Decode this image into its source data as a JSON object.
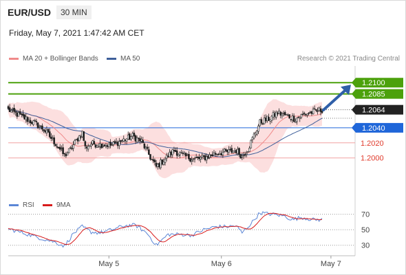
{
  "header": {
    "symbol": "EUR/USD",
    "timeframe": "30 MIN",
    "datetime": "Friday, May 7, 2021 1:47:42 AM CET",
    "copyright": "Research © 2021 Trading Central"
  },
  "legend": {
    "ma20_label": "MA 20 + Bollinger Bands",
    "ma50_label": "MA 50",
    "rsi_label": "RSI",
    "rsi_ma_label": "9MA"
  },
  "colors": {
    "ma20": "#f08a8a",
    "bollinger_fill": "#fbd4d4",
    "ma50": "#3e5f9a",
    "candle": "#222222",
    "target": "#4ca10c",
    "pivot": "#1f66d9",
    "support": "#e0392a",
    "support_line": "#f2a0a0",
    "last_price": "#222222",
    "arrow": "#2f5fa8",
    "rsi": "#5b86d6",
    "rsi_ma": "#d81b1b"
  },
  "chart_data": {
    "type": "candlestick",
    "symbol": "EUR/USD",
    "interval": "30 MIN",
    "price_axis": {
      "min": 1.1965,
      "max": 1.2113
    },
    "x_ticks": [
      "May 5",
      "May 6",
      "May 7"
    ],
    "last_price": 1.2064,
    "levels": [
      {
        "value": 1.21,
        "label": "1.2100",
        "kind": "target"
      },
      {
        "value": 1.2085,
        "label": "1.2085",
        "kind": "target"
      },
      {
        "value": 1.204,
        "label": "1.2040",
        "kind": "pivot"
      },
      {
        "value": 1.202,
        "label": "1.2020",
        "kind": "support"
      },
      {
        "value": 1.2,
        "label": "1.2000",
        "kind": "support"
      }
    ],
    "close_anchors": [
      [
        0,
        1.2064
      ],
      [
        6,
        1.2058
      ],
      [
        12,
        1.2052
      ],
      [
        18,
        1.2046
      ],
      [
        24,
        1.2038
      ],
      [
        30,
        1.2024
      ],
      [
        34,
        1.2014
      ],
      [
        38,
        1.2003
      ],
      [
        42,
        1.2011
      ],
      [
        46,
        1.2023
      ],
      [
        50,
        1.2034
      ],
      [
        52,
        1.2014
      ],
      [
        56,
        1.2019
      ],
      [
        62,
        1.2018
      ],
      [
        70,
        1.2017
      ],
      [
        78,
        1.2024
      ],
      [
        84,
        1.2029
      ],
      [
        90,
        1.2022
      ],
      [
        96,
        1.2001
      ],
      [
        100,
        1.1988
      ],
      [
        106,
        1.1999
      ],
      [
        112,
        1.201
      ],
      [
        118,
        1.2003
      ],
      [
        126,
        1.1998
      ],
      [
        134,
        1.2001
      ],
      [
        140,
        1.2006
      ],
      [
        148,
        1.2008
      ],
      [
        154,
        1.201
      ],
      [
        158,
        1.2002
      ],
      [
        162,
        1.2012
      ],
      [
        166,
        1.203
      ],
      [
        170,
        1.2047
      ],
      [
        176,
        1.2052
      ],
      [
        182,
        1.206
      ],
      [
        188,
        1.2056
      ],
      [
        194,
        1.2052
      ],
      [
        200,
        1.2058
      ],
      [
        206,
        1.2061
      ],
      [
        212,
        1.2064
      ]
    ],
    "rsi_axis": {
      "min": 20,
      "max": 75,
      "ticks": [
        70,
        50,
        30
      ]
    },
    "rsi_anchors": [
      [
        0,
        51
      ],
      [
        10,
        46
      ],
      [
        20,
        40
      ],
      [
        30,
        35
      ],
      [
        38,
        29
      ],
      [
        44,
        45
      ],
      [
        50,
        54
      ],
      [
        56,
        47
      ],
      [
        62,
        46
      ],
      [
        70,
        50
      ],
      [
        78,
        55
      ],
      [
        86,
        56
      ],
      [
        94,
        45
      ],
      [
        100,
        30
      ],
      [
        108,
        44
      ],
      [
        116,
        44
      ],
      [
        124,
        43
      ],
      [
        132,
        50
      ],
      [
        140,
        54
      ],
      [
        148,
        54
      ],
      [
        154,
        55
      ],
      [
        158,
        46
      ],
      [
        164,
        58
      ],
      [
        170,
        72
      ],
      [
        178,
        70
      ],
      [
        186,
        68
      ],
      [
        192,
        63
      ],
      [
        198,
        66
      ],
      [
        206,
        63
      ],
      [
        212,
        63
      ]
    ]
  }
}
